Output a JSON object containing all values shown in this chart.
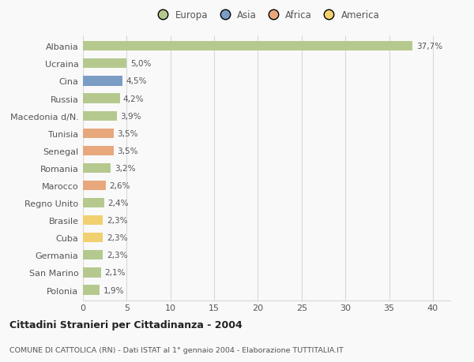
{
  "countries": [
    "Albania",
    "Ucraina",
    "Cina",
    "Russia",
    "Macedonia d/N.",
    "Tunisia",
    "Senegal",
    "Romania",
    "Marocco",
    "Regno Unito",
    "Brasile",
    "Cuba",
    "Germania",
    "San Marino",
    "Polonia"
  ],
  "values": [
    37.7,
    5.0,
    4.5,
    4.2,
    3.9,
    3.5,
    3.5,
    3.2,
    2.6,
    2.4,
    2.3,
    2.3,
    2.3,
    2.1,
    1.9
  ],
  "labels": [
    "37,7%",
    "5,0%",
    "4,5%",
    "4,2%",
    "3,9%",
    "3,5%",
    "3,5%",
    "3,2%",
    "2,6%",
    "2,4%",
    "2,3%",
    "2,3%",
    "2,3%",
    "2,1%",
    "1,9%"
  ],
  "continents": [
    "Europa",
    "Europa",
    "Asia",
    "Europa",
    "Europa",
    "Africa",
    "Africa",
    "Europa",
    "Africa",
    "Europa",
    "America",
    "America",
    "Europa",
    "Europa",
    "Europa"
  ],
  "colors": {
    "Europa": "#b5c98e",
    "Asia": "#7b9dc4",
    "Africa": "#e8a87c",
    "America": "#f0d070"
  },
  "xlim": [
    0,
    42
  ],
  "xticks": [
    0,
    5,
    10,
    15,
    20,
    25,
    30,
    35,
    40
  ],
  "title": "Cittadini Stranieri per Cittadinanza - 2004",
  "subtitle": "COMUNE DI CATTOLICA (RN) - Dati ISTAT al 1° gennaio 2004 - Elaborazione TUTTITALIA.IT",
  "background_color": "#f9f9f9",
  "grid_color": "#d8d8d8",
  "bar_height": 0.55
}
